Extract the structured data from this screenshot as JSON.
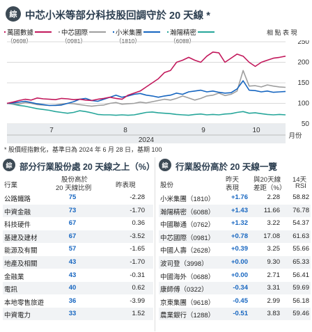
{
  "header": {
    "logo_text": "綜",
    "title": "中芯小米等部分科技股回調守於 20 天線 *"
  },
  "legend": [
    {
      "name": "萬國數據",
      "code": "（9698）",
      "color": "#c2185b"
    },
    {
      "name": "中芯國際",
      "code": "（0981）",
      "color": "#9e9e9e"
    },
    {
      "name": "小米集團",
      "code": "（1810）",
      "color": "#1565c0"
    },
    {
      "name": "瀚陽精密",
      "code": "（6088）",
      "color": "#26a69a"
    }
  ],
  "units_label": "相 點 表 現",
  "chart_data": {
    "type": "line",
    "x_ticks": [
      "7",
      "8",
      "9",
      "10"
    ],
    "x_year": "2024",
    "x_unit": "月份",
    "ylim": [
      50,
      250
    ],
    "y_ticks": [
      "250",
      "200",
      "150",
      "100",
      "50"
    ],
    "series": [
      {
        "name": "萬國數據",
        "color": "#c2185b",
        "values": [
          100,
          103,
          107,
          110,
          108,
          113,
          111,
          110,
          109,
          112,
          111,
          109,
          110,
          108,
          107,
          110,
          112,
          115,
          112,
          110,
          120,
          125,
          130,
          140,
          150,
          160,
          175,
          180,
          200,
          205,
          212,
          205,
          200,
          215,
          225,
          223,
          200,
          210,
          220,
          215,
          200,
          190,
          200,
          205,
          210,
          212,
          215
        ]
      },
      {
        "name": "中芯國際",
        "color": "#9e9e9e",
        "values": [
          100,
          99,
          98,
          102,
          100,
          97,
          96,
          95,
          96,
          98,
          100,
          99,
          97,
          95,
          93,
          95,
          96,
          100,
          102,
          98,
          99,
          100,
          103,
          101,
          104,
          107,
          110,
          108,
          112,
          118,
          113,
          108,
          112,
          118,
          120,
          125,
          119,
          122,
          130,
          180,
          142,
          143,
          140,
          145,
          142,
          140,
          139
        ]
      },
      {
        "name": "小米集團",
        "color": "#1565c0",
        "values": [
          100,
          101,
          103,
          105,
          102,
          99,
          97,
          95,
          95,
          96,
          100,
          104,
          110,
          112,
          107,
          105,
          110,
          115,
          120,
          115,
          118,
          122,
          124,
          120,
          118,
          115,
          118,
          120,
          125,
          122,
          128,
          130,
          132,
          128,
          130,
          127,
          125,
          126,
          135,
          155,
          132,
          131,
          128,
          130,
          127,
          128,
          129
        ]
      },
      {
        "name": "瀚陽精密",
        "color": "#26a69a",
        "values": [
          100,
          98,
          95,
          93,
          90,
          87,
          85,
          83,
          80,
          78,
          76,
          78,
          82,
          80,
          77,
          73,
          72,
          72,
          71,
          72,
          71,
          72,
          75,
          78,
          79,
          77,
          76,
          75,
          73,
          72,
          71,
          73,
          74,
          72,
          73,
          72,
          74,
          75,
          78,
          80,
          76,
          77,
          75,
          73,
          72,
          73,
          72
        ]
      }
    ]
  },
  "source_note": "* 股價經指數化，基準日為 2024 年 6 月 28 日，基期 100",
  "left_table": {
    "heading_icon": "綜",
    "heading": "部分行業股份處 20 天線之上（%）",
    "col_industry": "行業",
    "col_pct_line1": "股份高於",
    "col_pct_line2": "20 天線比例",
    "col_change": "昨表現",
    "rows": [
      {
        "industry": "公路鐵路",
        "pct": "75",
        "change": "-2.28"
      },
      {
        "industry": "中資金融",
        "pct": "73",
        "change": "-1.70"
      },
      {
        "industry": "科技硬件",
        "pct": "67",
        "change": "0.36"
      },
      {
        "industry": "基建及建材",
        "pct": "67",
        "change": "-3.52"
      },
      {
        "industry": "能源及有關",
        "pct": "57",
        "change": "-1.65"
      },
      {
        "industry": "地產及相關",
        "pct": "43",
        "change": "-1.70"
      },
      {
        "industry": "金融業",
        "pct": "43",
        "change": "-0.31"
      },
      {
        "industry": "電訊",
        "pct": "40",
        "change": "0.62"
      },
      {
        "industry": "本地零售旅遊",
        "pct": "36",
        "change": "-3.99"
      },
      {
        "industry": "中資電力",
        "pct": "33",
        "change": "1.52"
      }
    ]
  },
  "right_table": {
    "heading_icon": "綜",
    "heading": "行業股份高於 20 天線一覽",
    "col_stock": "股份",
    "col_perf_line1": "昨天",
    "col_perf_line2": "表現",
    "col_diff_line1": "與20天線",
    "col_diff_line2": "差距（%）",
    "col_rsi_line1": "14天",
    "col_rsi_line2": "RSI",
    "rows": [
      {
        "stock": "小米集團（1810）",
        "perf": "+1.76",
        "diff": "2.28",
        "rsi": "58.82"
      },
      {
        "stock": "瀚陽精密（6088）",
        "perf": "+1.43",
        "diff": "11.66",
        "rsi": "76.78"
      },
      {
        "stock": "中國聯通（0762）",
        "perf": "+1.32",
        "diff": "3.22",
        "rsi": "54.37"
      },
      {
        "stock": "中芯國際（0981）",
        "perf": "+0.78",
        "diff": "17.08",
        "rsi": "61.63"
      },
      {
        "stock": "中國人壽（2628）",
        "perf": "+0.39",
        "diff": "3.25",
        "rsi": "55.66"
      },
      {
        "stock": "波司登（3998）",
        "perf": "+0.00",
        "diff": "9.30",
        "rsi": "65.33"
      },
      {
        "stock": "中國海外（0688）",
        "perf": "+0.00",
        "diff": "2.71",
        "rsi": "56.41"
      },
      {
        "stock": "康師傅（0322）",
        "perf": "-0.34",
        "diff": "3.31",
        "rsi": "59.69"
      },
      {
        "stock": "京東集團（9618）",
        "perf": "-0.45",
        "diff": "2.99",
        "rsi": "56.18"
      },
      {
        "stock": "農業銀行（1288）",
        "perf": "-0.51",
        "diff": "3.83",
        "rsi": "59.46"
      }
    ]
  }
}
